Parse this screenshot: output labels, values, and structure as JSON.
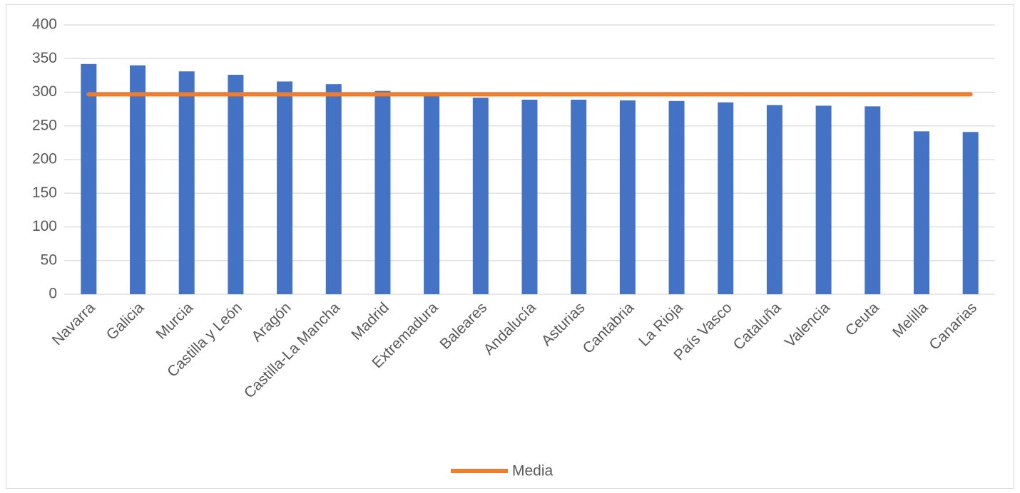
{
  "chart_data": {
    "type": "bar",
    "categories": [
      "Navarra",
      "Galicia",
      "Murcia",
      "Castilla y León",
      "Aragón",
      "Castilla-La Mancha",
      "Madrid",
      "Extremadura",
      "Baleares",
      "Andalucía",
      "Asturias",
      "Cantabria",
      "La Rioja",
      "País Vasco",
      "Cataluña",
      "Valencia",
      "Ceuta",
      "Melilla",
      "Canarias"
    ],
    "series": [
      {
        "type": "bar",
        "color": "#4472c4",
        "values": [
          342,
          340,
          331,
          326,
          316,
          312,
          302,
          298,
          292,
          289,
          289,
          288,
          287,
          285,
          281,
          280,
          279,
          242,
          241
        ]
      },
      {
        "type": "line",
        "name": "Media",
        "color": "#ed7d31",
        "values": [
          297,
          297,
          297,
          297,
          297,
          297,
          297,
          297,
          297,
          297,
          297,
          297,
          297,
          297,
          297,
          297,
          297,
          297,
          297
        ]
      }
    ],
    "ylim": [
      0,
      400
    ],
    "yticks": [
      0,
      50,
      100,
      150,
      200,
      250,
      300,
      350,
      400
    ],
    "grid": true,
    "legend": "bottom"
  }
}
